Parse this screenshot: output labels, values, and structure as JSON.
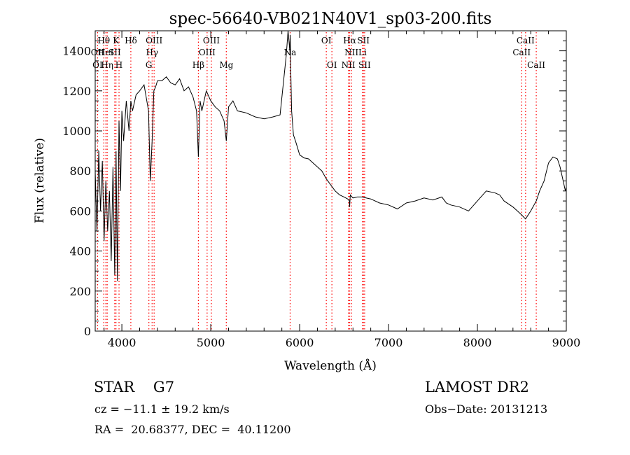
{
  "chart_data": {
    "type": "line",
    "title": "spec-56640-VB021N40V1_sp03-200.fits",
    "xlabel": "Wavelength (Å)",
    "ylabel": "Flux (relative)",
    "xlim": [
      3700,
      9000
    ],
    "ylim": [
      0,
      1500
    ],
    "xticks": [
      4000,
      5000,
      6000,
      7000,
      8000,
      9000
    ],
    "yticks": [
      0,
      200,
      400,
      600,
      800,
      1000,
      1200,
      1400
    ],
    "grid": false,
    "series": [
      {
        "x": [
          3700,
          3720,
          3740,
          3760,
          3780,
          3800,
          3820,
          3840,
          3860,
          3880,
          3900,
          3920,
          3935,
          3950,
          3968,
          3985,
          4000,
          4020,
          4050,
          4080,
          4101,
          4120,
          4160,
          4200,
          4250,
          4300,
          4320,
          4340,
          4360,
          4380,
          4400,
          4450,
          4500,
          4550,
          4600,
          4650,
          4700,
          4750,
          4800,
          4840,
          4861,
          4880,
          4900,
          4950,
          5000,
          5050,
          5100,
          5150,
          5175,
          5200,
          5250,
          5300,
          5400,
          5500,
          5600,
          5700,
          5780,
          5850,
          5870,
          5880,
          5889,
          5893,
          5896,
          5900,
          5910,
          5930,
          5960,
          6000,
          6050,
          6100,
          6150,
          6200,
          6250,
          6300,
          6350,
          6400,
          6450,
          6500,
          6540,
          6560,
          6563,
          6570,
          6600,
          6650,
          6700,
          6800,
          6900,
          7000,
          7100,
          7200,
          7300,
          7400,
          7500,
          7600,
          7650,
          7700,
          7800,
          7900,
          8000,
          8100,
          8200,
          8250,
          8300,
          8400,
          8450,
          8498,
          8542,
          8600,
          8662,
          8700,
          8750,
          8800,
          8850,
          8900,
          8930,
          8960,
          8990,
          9000
        ],
        "values": [
          800,
          500,
          900,
          600,
          850,
          450,
          750,
          500,
          700,
          350,
          820,
          280,
          900,
          250,
          1050,
          700,
          1100,
          950,
          1150,
          1000,
          1150,
          1100,
          1180,
          1200,
          1230,
          1100,
          750,
          950,
          1200,
          1220,
          1250,
          1250,
          1270,
          1240,
          1230,
          1260,
          1200,
          1220,
          1170,
          1100,
          870,
          1150,
          1100,
          1200,
          1150,
          1120,
          1100,
          1050,
          950,
          1120,
          1150,
          1100,
          1090,
          1070,
          1060,
          1070,
          1080,
          1380,
          1560,
          1450,
          1400,
          1480,
          1420,
          1300,
          1100,
          980,
          940,
          880,
          865,
          860,
          840,
          820,
          800,
          760,
          730,
          700,
          680,
          670,
          660,
          650,
          620,
          680,
          665,
          670,
          670,
          660,
          640,
          630,
          610,
          640,
          650,
          665,
          655,
          670,
          640,
          630,
          620,
          600,
          650,
          700,
          690,
          680,
          650,
          620,
          600,
          580,
          560,
          600,
          650,
          700,
          750,
          840,
          870,
          860,
          820,
          760,
          700,
          720
        ]
      }
    ],
    "lines": [
      {
        "label": "Hθ",
        "x": 3797,
        "row": 1
      },
      {
        "label": "OII",
        "x": 3727,
        "row": 2
      },
      {
        "label": "OI",
        "x": 3727,
        "row": 3
      },
      {
        "label": "HeI",
        "x": 3820,
        "row": 2
      },
      {
        "label": "Hη",
        "x": 3835,
        "row": 3
      },
      {
        "label": "K",
        "x": 3934,
        "row": 1
      },
      {
        "label": "SII",
        "x": 3920,
        "row": 2
      },
      {
        "label": "H",
        "x": 3968,
        "row": 3
      },
      {
        "label": "Hδ",
        "x": 4101,
        "row": 1
      },
      {
        "label": "OIII",
        "x": 4363,
        "row": 1
      },
      {
        "label": "Hγ",
        "x": 4340,
        "row": 2
      },
      {
        "label": "G",
        "x": 4304,
        "row": 3
      },
      {
        "label": "Hβ",
        "x": 4861,
        "row": 3
      },
      {
        "label": "OIII",
        "x": 5007,
        "row": 1
      },
      {
        "label": "OIII",
        "x": 4959,
        "row": 2
      },
      {
        "label": "Mg",
        "x": 5175,
        "row": 3
      },
      {
        "label": "Na",
        "x": 5893,
        "row": 2
      },
      {
        "label": "OI",
        "x": 6300,
        "row": 1
      },
      {
        "label": "OI",
        "x": 6363,
        "row": 3
      },
      {
        "label": "Hα",
        "x": 6563,
        "row": 1
      },
      {
        "label": "SII",
        "x": 6717,
        "row": 1
      },
      {
        "label": "NII",
        "x": 6583,
        "row": 2
      },
      {
        "label": "Li",
        "x": 6708,
        "row": 2
      },
      {
        "label": "NII",
        "x": 6548,
        "row": 3
      },
      {
        "label": "SII",
        "x": 6731,
        "row": 3
      },
      {
        "label": "CaII",
        "x": 8542,
        "row": 1
      },
      {
        "label": "CaII",
        "x": 8498,
        "row": 2
      },
      {
        "label": "CaII",
        "x": 8662,
        "row": 3
      }
    ]
  },
  "info": {
    "class": "STAR    G7",
    "survey": "LAMOST DR2",
    "cz": "cz = −11.1 ± 19.2 km/s",
    "obsdate": "Obs−Date: 20131213",
    "radec": "RA =  20.68377, DEC =  40.11200"
  },
  "colors": {
    "line": "#000000",
    "marker": "#ff0000"
  }
}
